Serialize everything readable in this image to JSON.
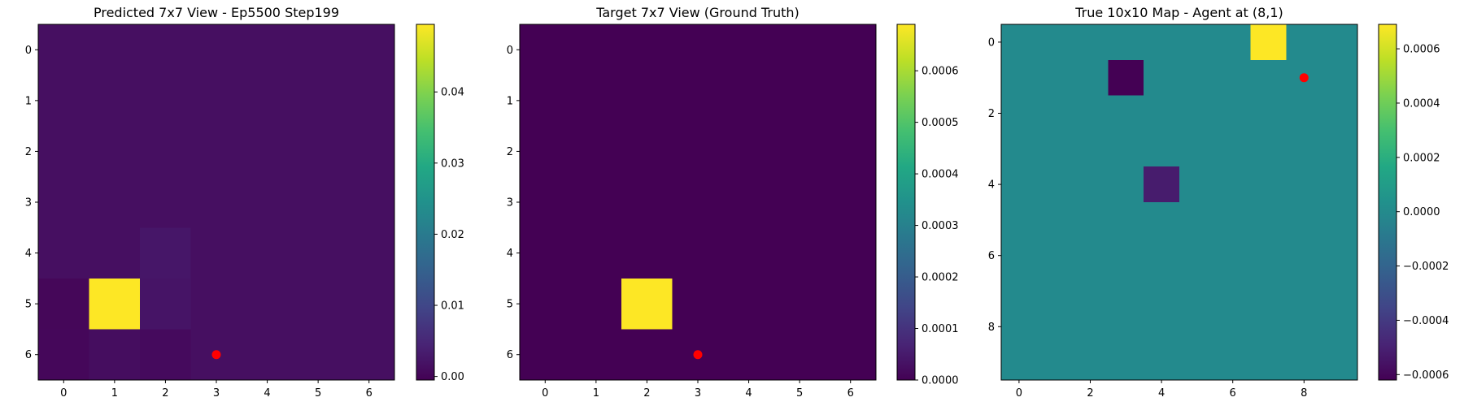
{
  "chart_data": [
    {
      "type": "heatmap",
      "title": "Predicted 7x7 View - Ep5500 Step199",
      "cols": 7,
      "rows": 7,
      "x_ticks": [
        0,
        1,
        2,
        3,
        4,
        5,
        6
      ],
      "y_ticks": [
        0,
        1,
        2,
        3,
        4,
        5,
        6
      ],
      "values": [
        [
          0.0015,
          0.0015,
          0.0015,
          0.0015,
          0.0015,
          0.0015,
          0.0015
        ],
        [
          0.0015,
          0.0015,
          0.0015,
          0.0015,
          0.0015,
          0.0015,
          0.0015
        ],
        [
          0.0015,
          0.0015,
          0.0015,
          0.0015,
          0.0015,
          0.0015,
          0.0015
        ],
        [
          0.0015,
          0.0015,
          0.0015,
          0.0015,
          0.0015,
          0.0015,
          0.0015
        ],
        [
          0.0015,
          0.0015,
          0.0025,
          0.0015,
          0.0015,
          0.0015,
          0.0015
        ],
        [
          0.0003,
          0.0495,
          0.0022,
          0.0015,
          0.0015,
          0.0015,
          0.0015
        ],
        [
          0.0004,
          0.0012,
          0.0008,
          0.0015,
          0.0015,
          0.0015,
          0.0015
        ]
      ],
      "colorbar": {
        "min": -0.0005,
        "max": 0.0495,
        "ticks": [
          0.0,
          0.01,
          0.02,
          0.03,
          0.04
        ],
        "tick_labels": [
          "0.00",
          "0.01",
          "0.02",
          "0.03",
          "0.04"
        ]
      },
      "marker": {
        "x": 3,
        "y": 6,
        "color": "#ff0000"
      },
      "colormap": "viridis"
    },
    {
      "type": "heatmap",
      "title": "Target 7x7 View (Ground Truth)",
      "cols": 7,
      "rows": 7,
      "x_ticks": [
        0,
        1,
        2,
        3,
        4,
        5,
        6
      ],
      "y_ticks": [
        0,
        1,
        2,
        3,
        4,
        5,
        6
      ],
      "values": [
        [
          0,
          0,
          0,
          0,
          0,
          0,
          0
        ],
        [
          0,
          0,
          0,
          0,
          0,
          0,
          0
        ],
        [
          0,
          0,
          0,
          0,
          0,
          0,
          0
        ],
        [
          0,
          0,
          0,
          0,
          0,
          0,
          0
        ],
        [
          0,
          0,
          0,
          0,
          0,
          0,
          0
        ],
        [
          0,
          0,
          0.00069,
          0,
          0,
          0,
          0
        ],
        [
          0,
          0,
          0,
          0,
          0,
          0,
          0
        ]
      ],
      "colorbar": {
        "min": 0,
        "max": 0.00069,
        "ticks": [
          0,
          0.0001,
          0.0002,
          0.0003,
          0.0004,
          0.0005,
          0.0006
        ],
        "tick_labels": [
          "0.0000",
          "0.0001",
          "0.0002",
          "0.0003",
          "0.0004",
          "0.0005",
          "0.0006"
        ]
      },
      "marker": {
        "x": 3,
        "y": 6,
        "color": "#ff0000"
      },
      "colormap": "viridis"
    },
    {
      "type": "heatmap",
      "title": "True 10x10 Map - Agent at (8,1)",
      "cols": 10,
      "rows": 10,
      "x_ticks": [
        0,
        2,
        4,
        6,
        8
      ],
      "y_ticks": [
        0,
        2,
        4,
        6,
        8
      ],
      "values": [
        [
          0,
          0,
          0,
          0,
          0,
          0,
          0,
          0.00069,
          0,
          0
        ],
        [
          0,
          0,
          0,
          -0.00062,
          0,
          0,
          0,
          0,
          0,
          0
        ],
        [
          0,
          0,
          0,
          0,
          0,
          0,
          0,
          0,
          0,
          0
        ],
        [
          0,
          0,
          0,
          0,
          0,
          0,
          0,
          0,
          0,
          0
        ],
        [
          0,
          0,
          0,
          0,
          -0.00052,
          0,
          0,
          0,
          0,
          0
        ],
        [
          0,
          0,
          0,
          0,
          0,
          0,
          0,
          0,
          0,
          0
        ],
        [
          0,
          0,
          0,
          0,
          0,
          0,
          0,
          0,
          0,
          0
        ],
        [
          0,
          0,
          0,
          0,
          0,
          0,
          0,
          0,
          0,
          0
        ],
        [
          0,
          0,
          0,
          0,
          0,
          0,
          0,
          0,
          0,
          0
        ],
        [
          0,
          0,
          0,
          0,
          0,
          0,
          0,
          0,
          0,
          0
        ]
      ],
      "colorbar": {
        "min": -0.00062,
        "max": 0.00069,
        "ticks": [
          -0.0006,
          -0.0004,
          -0.0002,
          0,
          0.0002,
          0.0004,
          0.0006
        ],
        "tick_labels": [
          "−0.0006",
          "−0.0004",
          "−0.0002",
          "0.0000",
          "0.0002",
          "0.0004",
          "0.0006"
        ]
      },
      "marker": {
        "x": 8,
        "y": 1,
        "color": "#ff0000"
      },
      "colormap": "viridis"
    }
  ]
}
